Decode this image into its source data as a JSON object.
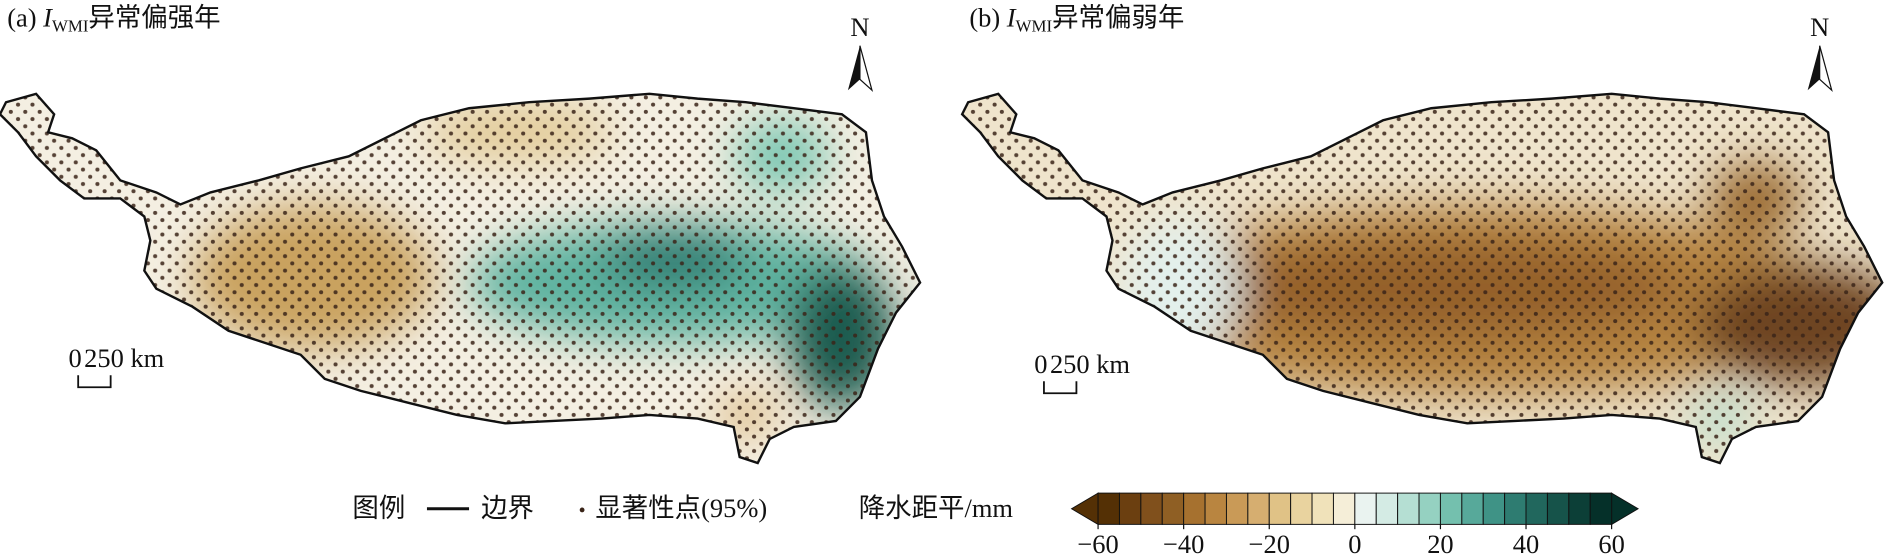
{
  "panels": [
    {
      "label": "(a)",
      "index": "I",
      "index_sub": "WMI",
      "title": "异常偏强年",
      "north": "N",
      "scale_start": "0",
      "scale_end": "250 km"
    },
    {
      "label": "(b)",
      "index": "I",
      "index_sub": "WMI",
      "title": "异常偏弱年",
      "north": "N",
      "scale_start": "0",
      "scale_end": "250 km"
    }
  ],
  "legend": {
    "title": "图例",
    "boundary": "边界",
    "significance": "显著性点(95%)"
  },
  "colorbar": {
    "label": "降水距平/mm",
    "lim": [
      -60,
      60
    ],
    "colors": [
      "#543005",
      "#6b3f10",
      "#80501c",
      "#8f5f24",
      "#a6712f",
      "#b98540",
      "#c99a57",
      "#d6ae70",
      "#e0c286",
      "#e9d39f",
      "#f0e2ba",
      "#f5eed8",
      "#eaf3f0",
      "#d4ebe4",
      "#b5dfd3",
      "#95d1c1",
      "#74c0ae",
      "#57a99a",
      "#3f9386",
      "#2e7c71",
      "#21675d",
      "#16534a",
      "#0c3f37",
      "#053029"
    ],
    "ticks": [
      {
        "value": -60,
        "label": "−60"
      },
      {
        "value": -40,
        "label": "−40"
      },
      {
        "value": -20,
        "label": "−20"
      },
      0,
      20,
      40,
      60
    ]
  }
}
